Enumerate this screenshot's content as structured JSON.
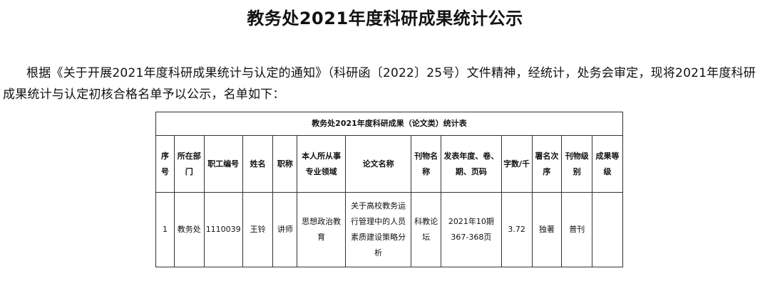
{
  "title": "教务处2021年度科研成果统计公示",
  "paragraph": "根据《关于开展2021年度科研成果统计与认定的通知》（科研函〔2022〕25号）文件精神，经统计，处务会审定，现将2021年度科研成果统计与认定初核合格名单予以公示，名单如下：",
  "table": {
    "caption": "教务处2021年度科研成果（论文类）统计表",
    "headers": [
      "序号",
      "所在部门",
      "职工编号",
      "姓名",
      "职称",
      "本人所从事专业领域",
      "论文名称",
      "刊物名称",
      "发表年度、卷、期、页码",
      "字数/千",
      "署名次序",
      "刊物级别",
      "成果等级"
    ],
    "rows": [
      [
        "1",
        "教务处",
        "1110039",
        "王铃",
        "讲师",
        "思想政治教育",
        "关于高校教务运行管理中的人员素质建设策略分析",
        "科教论坛",
        "2021年10期 367-368页",
        "3.72",
        "独著",
        "普刊",
        ""
      ]
    ]
  }
}
